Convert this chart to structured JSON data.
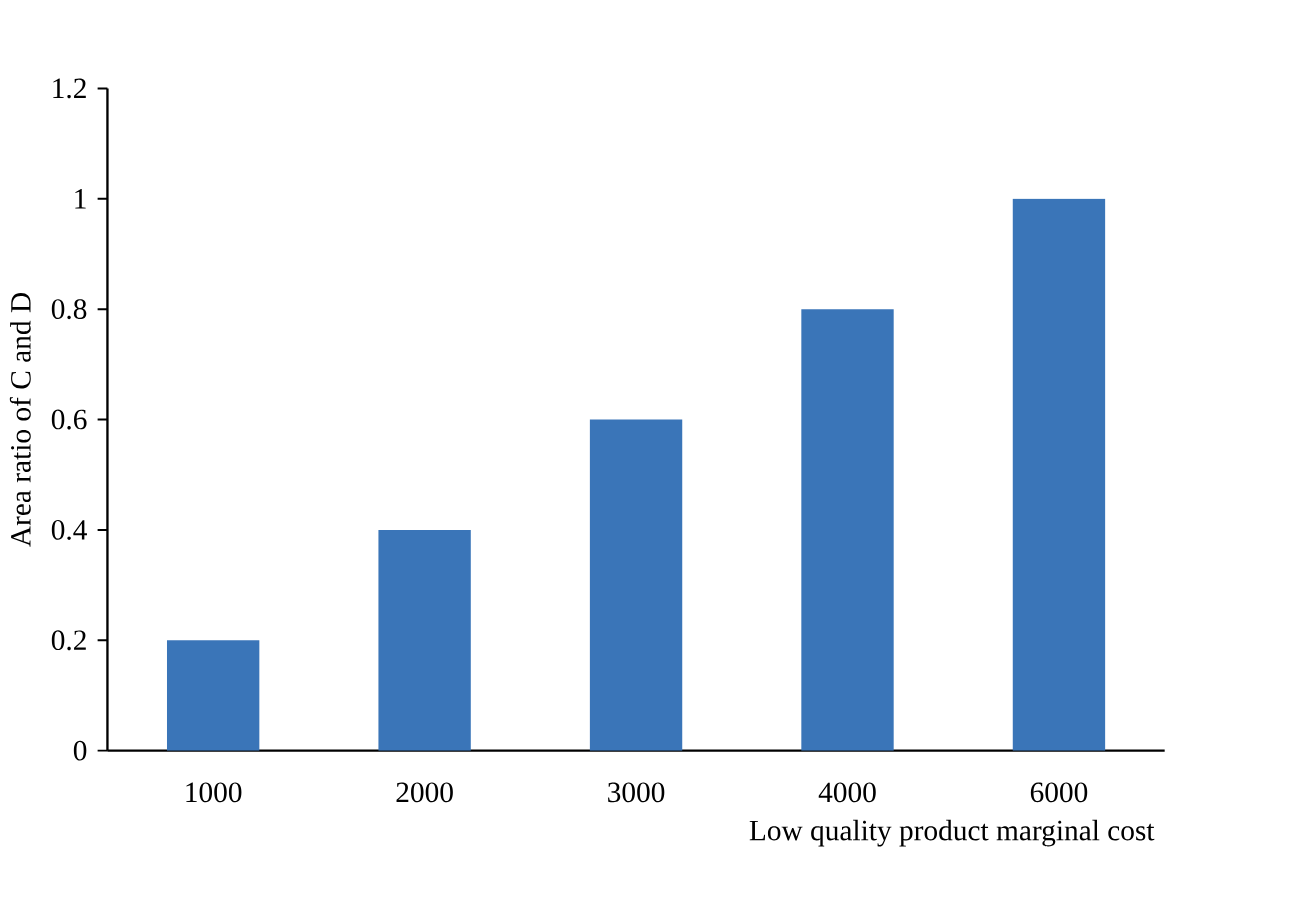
{
  "chart_data": {
    "type": "bar",
    "xlabel": "Low quality product marginal cost",
    "ylabel": "Area ratio of C and D",
    "categories": [
      "1000",
      "2000",
      "3000",
      "4000",
      "6000"
    ],
    "values": [
      0.2,
      0.4,
      0.6,
      0.8,
      1
    ],
    "color": "#3a75b8",
    "ylim": [
      0,
      1.2
    ],
    "yticks": [
      0,
      0.2,
      0.4,
      0.6,
      0.8,
      1,
      1.2
    ],
    "grid": false
  }
}
